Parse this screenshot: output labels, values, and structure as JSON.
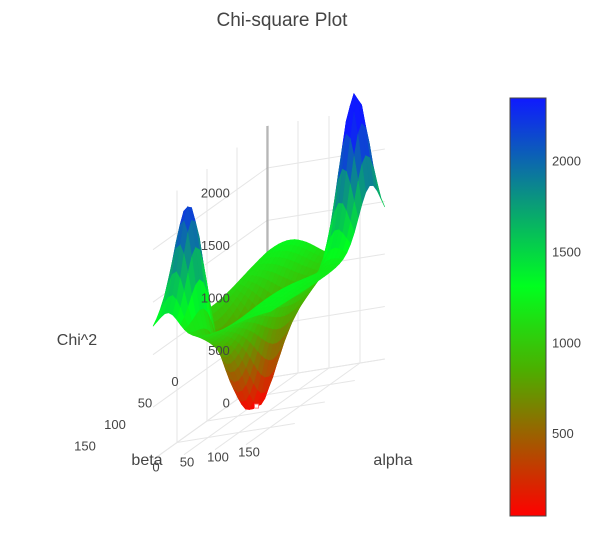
{
  "chart_data": {
    "type": "surface",
    "title": "Chi-square Plot",
    "xlabel": "alpha",
    "ylabel": "beta",
    "zlabel": "Chi^2",
    "x_ticks": [
      0,
      50,
      100,
      150
    ],
    "y_ticks": [
      0,
      50,
      100,
      150
    ],
    "z_ticks": [
      0,
      500,
      1000,
      1500,
      2000
    ],
    "x_range": [
      0,
      190
    ],
    "y_range": [
      0,
      190
    ],
    "z_range": [
      0,
      2400
    ],
    "grid": true,
    "colorbar": {
      "min": 50,
      "max": 2350,
      "ticks": [
        500,
        1000,
        1500,
        2000
      ],
      "colorscale": [
        [
          0.0,
          "#ff0000"
        ],
        [
          0.35,
          "#4caf00"
        ],
        [
          0.55,
          "#00ff1f"
        ],
        [
          0.75,
          "#0a9a7a"
        ],
        [
          1.0,
          "#0f1aff"
        ]
      ]
    },
    "surface_features": [
      {
        "feature": "minimum",
        "alpha": 75,
        "beta": 95,
        "chi2": 50,
        "marker": true
      },
      {
        "feature": "peak",
        "alpha": 25,
        "beta": 155,
        "chi2": 2100
      },
      {
        "feature": "peak",
        "alpha": 165,
        "beta": 25,
        "chi2": 2350
      }
    ]
  }
}
